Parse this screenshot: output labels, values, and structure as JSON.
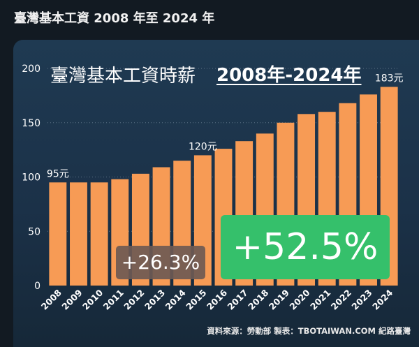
{
  "header": {
    "title": "臺灣基本工資 2008 年至 2024 年"
  },
  "chart_data": {
    "type": "bar",
    "title": "臺灣基本工資時薪",
    "title_highlight": "2008年-2024年",
    "categories": [
      "2008",
      "2009",
      "2010",
      "2011",
      "2012",
      "2013",
      "2014",
      "2015",
      "2016",
      "2017",
      "2018",
      "2019",
      "2020",
      "2021",
      "2022",
      "2023",
      "2024"
    ],
    "values": [
      95,
      95,
      95,
      98,
      103,
      109,
      115,
      120,
      126,
      133,
      140,
      150,
      158,
      160,
      168,
      176,
      183
    ],
    "ylim": [
      0,
      200
    ],
    "yticks": [
      "0",
      "50",
      "100",
      "150",
      "200"
    ],
    "data_labels": [
      {
        "index": 0,
        "text": "95元"
      },
      {
        "index": 7,
        "text": "120元"
      },
      {
        "index": 16,
        "text": "183元"
      }
    ],
    "annotations": {
      "small": "+26.3%",
      "large": "+52.5%"
    },
    "colors": {
      "bar": "#f79b55",
      "grid": "#5d7386",
      "axis_text": "#ffffff",
      "badge_small": "#6e5a54",
      "badge_large": "#35c06b"
    }
  },
  "footer": {
    "source": "資料來源：勞動部 製表：TBOTAIWAN.COM 紀路臺灣"
  }
}
